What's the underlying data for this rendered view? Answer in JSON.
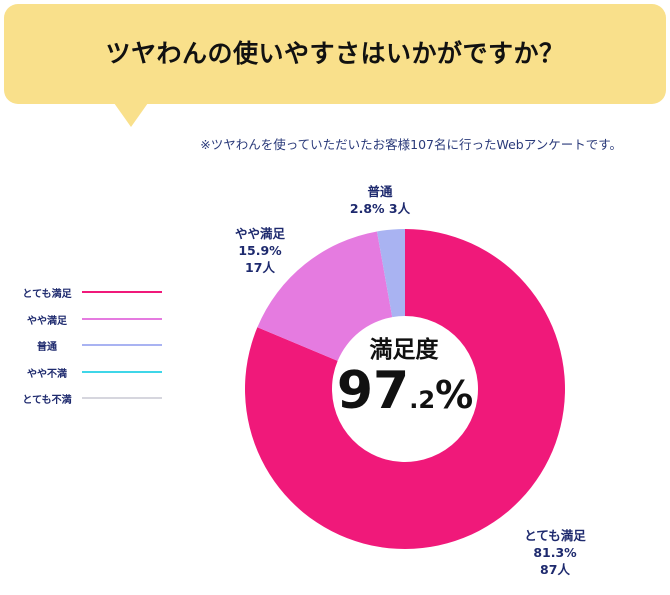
{
  "title": "ツヤわんの使いやすさはいかがですか？",
  "note": "※ツヤわんを使っていただいたお客様107名に行ったWebアンケートです。",
  "center": {
    "label": "満足度",
    "value_int": "97",
    "value_dec": ".2",
    "unit": "%"
  },
  "legend": [
    {
      "label": "とても満足",
      "color": "#f0197a"
    },
    {
      "label": "やや満足",
      "color": "#e57be0"
    },
    {
      "label": "普通",
      "color": "#a9b3f2"
    },
    {
      "label": "やや不満",
      "color": "#3fd6e8"
    },
    {
      "label": "とても不満",
      "color": "#d6d6de"
    }
  ],
  "chart_data": {
    "type": "pie",
    "categories": [
      "とても満足",
      "やや満足",
      "普通",
      "やや不満",
      "とても不満"
    ],
    "values": [
      81.3,
      15.9,
      2.8,
      0,
      0
    ],
    "counts": [
      87,
      17,
      3,
      0,
      0
    ],
    "colors": [
      "#f0197a",
      "#e57be0",
      "#a9b3f2",
      "#3fd6e8",
      "#d6d6de"
    ],
    "data_labels": [
      {
        "name": "とても満足",
        "percent": "81.3%",
        "count": "87人"
      },
      {
        "name": "やや満足",
        "percent": "15.9%",
        "count": "17人"
      },
      {
        "name": "普通",
        "percent": "2.8%",
        "count": "3人"
      }
    ],
    "title": "ツヤわんの使いやすさはいかがですか？",
    "center_value": "97.2%"
  }
}
